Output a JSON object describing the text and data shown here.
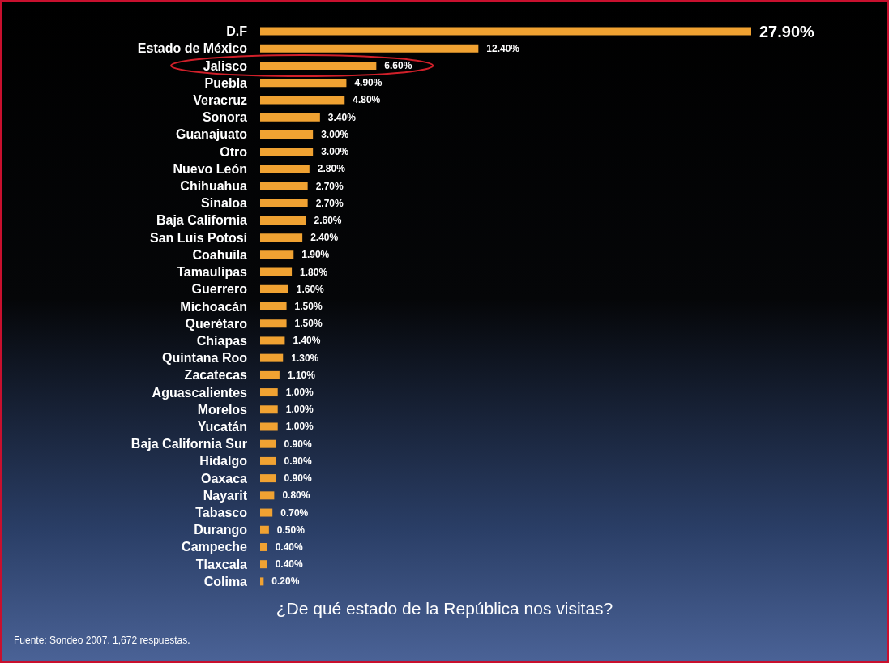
{
  "chart_data": {
    "type": "bar",
    "orientation": "horizontal",
    "title": "¿De qué estado de la República nos visitas?",
    "annotations": [
      "Fuente: Sondeo 2007. 1,672 respuestas."
    ],
    "categories": [
      "D.F",
      "Estado de México",
      "Jalisco",
      "Puebla",
      "Veracruz",
      "Sonora",
      "Guanajuato",
      "Otro",
      "Nuevo León",
      "Chihuahua",
      "Sinaloa",
      "Baja California",
      "San Luis Potosí",
      "Coahuila",
      "Tamaulipas",
      "Guerrero",
      "Michoacán",
      "Querétaro",
      "Chiapas",
      "Quintana Roo",
      "Zacatecas",
      "Aguascalientes",
      "Morelos",
      "Yucatán",
      "Baja California Sur",
      "Hidalgo",
      "Oaxaca",
      "Nayarit",
      "Tabasco",
      "Durango",
      "Campeche",
      "Tlaxcala",
      "Colima"
    ],
    "values": [
      27.9,
      12.4,
      6.6,
      4.9,
      4.8,
      3.4,
      3.0,
      3.0,
      2.8,
      2.7,
      2.7,
      2.6,
      2.4,
      1.9,
      1.8,
      1.6,
      1.5,
      1.5,
      1.4,
      1.3,
      1.1,
      1.0,
      1.0,
      1.0,
      0.9,
      0.9,
      0.9,
      0.8,
      0.7,
      0.5,
      0.4,
      0.4,
      0.2
    ],
    "value_labels": [
      "27.90%",
      "12.40%",
      "6.60%",
      "4.90%",
      "4.80%",
      "3.40%",
      "3.00%",
      "3.00%",
      "2.80%",
      "2.70%",
      "2.70%",
      "2.60%",
      "2.40%",
      "1.90%",
      "1.80%",
      "1.60%",
      "1.50%",
      "1.50%",
      "1.40%",
      "1.30%",
      "1.10%",
      "1.00%",
      "1.00%",
      "1.00%",
      "0.90%",
      "0.90%",
      "0.90%",
      "0.80%",
      "0.70%",
      "0.50%",
      "0.40%",
      "0.40%",
      "0.20%"
    ],
    "color": "#f0a232"
  }
}
